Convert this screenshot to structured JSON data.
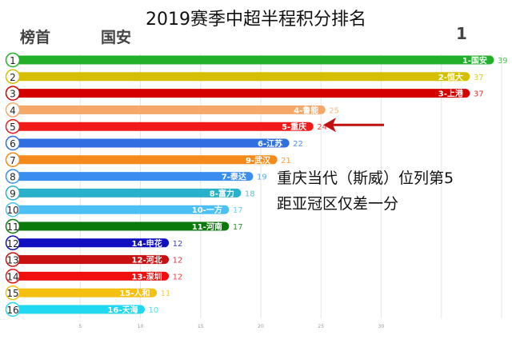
{
  "header": {
    "title": "2019赛季中超半程积分排名",
    "leader_label": "榜首",
    "leader_team": "国安",
    "leader_rank": "1"
  },
  "annotation": {
    "line1": "重庆当代（斯威）位列第5",
    "line2": "距亚冠区仅差一分",
    "arrow_color": "#c01010"
  },
  "chart_data": {
    "type": "bar",
    "orientation": "horizontal",
    "title": "2019赛季中超半程积分排名",
    "xlim": [
      0,
      40
    ],
    "xticks": [
      5,
      10,
      15,
      20,
      25,
      30
    ],
    "grid": true,
    "ranks": [
      "1",
      "2",
      "3",
      "4",
      "5",
      "6",
      "7",
      "8",
      "9",
      "10",
      "11",
      "12",
      "13",
      "14",
      "15",
      "16"
    ],
    "categories": [
      "1-国安",
      "2-恒大",
      "3-上港",
      "4-鲁能",
      "5-重庆",
      "6-江苏",
      "9-武汉",
      "7-泰达",
      "8-富力",
      "10-一方",
      "11-河南",
      "14-申花",
      "12-河北",
      "13-深圳",
      "15-人和",
      "16-天海"
    ],
    "values": [
      39,
      37,
      37,
      25,
      24,
      22,
      21,
      19,
      18,
      17,
      17,
      12,
      12,
      12,
      11,
      10
    ],
    "colors": [
      "#22b02a",
      "#d4c000",
      "#d40000",
      "#f5a86a",
      "#f01a1a",
      "#2f6fe0",
      "#f58a1a",
      "#3a8ef0",
      "#2ab0c8",
      "#4cc0f5",
      "#0a7a0a",
      "#1010c0",
      "#c81010",
      "#f01010",
      "#f5c010",
      "#20d8f0"
    ]
  }
}
